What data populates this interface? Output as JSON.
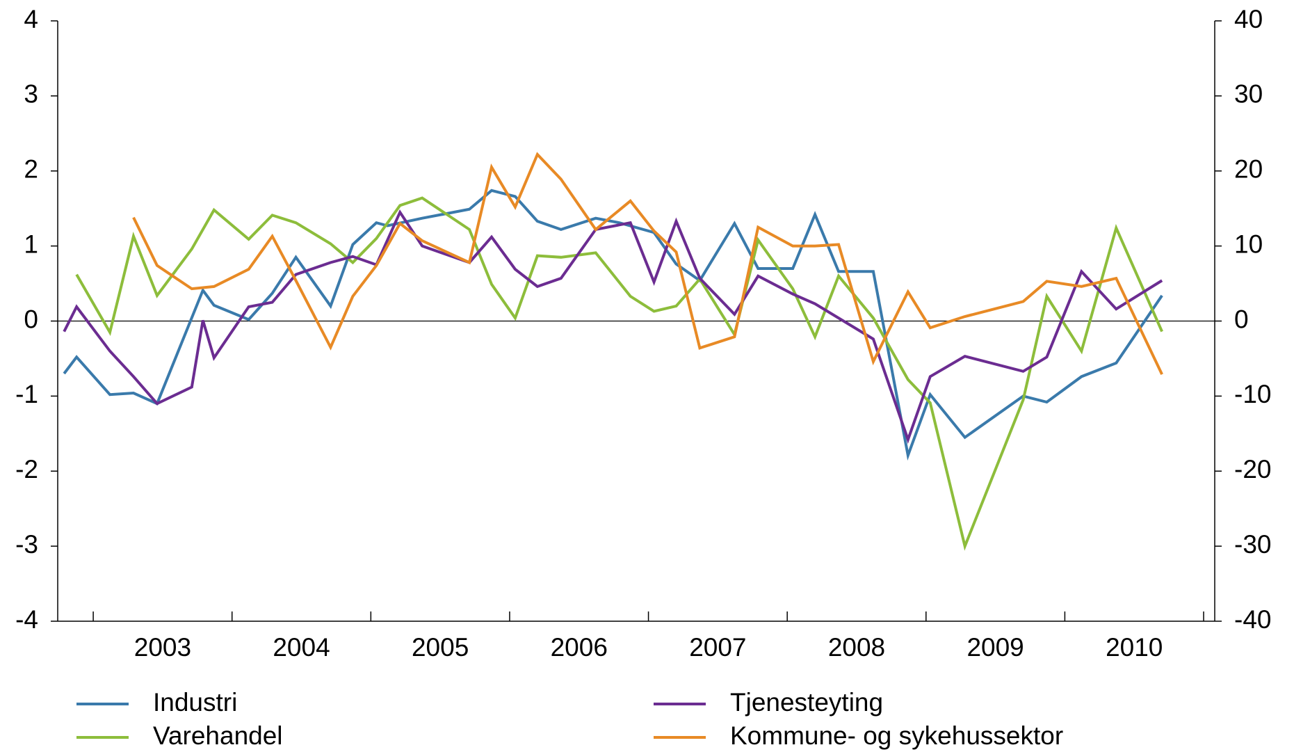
{
  "chart_data": {
    "type": "line",
    "xlim": [
      2002.744,
      2011.08
    ],
    "xticks": [
      2003,
      2004,
      2005,
      2006,
      2007,
      2008,
      2009,
      2010,
      2011
    ],
    "year_labels": [
      "2003",
      "2004",
      "2005",
      "2006",
      "2007",
      "2008",
      "2009",
      "2010"
    ],
    "ylim": [
      -4,
      4
    ],
    "yticks": [
      -4,
      -3,
      -2,
      -1,
      0,
      1,
      2,
      3,
      4
    ],
    "y2lim": [
      -40,
      40
    ],
    "y2ticks": [
      -40,
      -30,
      -20,
      -10,
      0,
      10,
      20,
      30,
      40
    ],
    "zero_line": true,
    "series": [
      {
        "name": "Industri",
        "color": "#3a7aab",
        "x": [
          2002.79,
          2002.88,
          2003.12,
          2003.29,
          2003.46,
          2003.79,
          2003.87,
          2004.12,
          2004.29,
          2004.46,
          2004.71,
          2004.87,
          2005.04,
          2005.12,
          2005.37,
          2005.71,
          2005.87,
          2006.04,
          2006.2,
          2006.37,
          2006.62,
          2006.79,
          2007.04,
          2007.2,
          2007.37,
          2007.62,
          2007.79,
          2008.04,
          2008.2,
          2008.37,
          2008.62,
          2008.87,
          2009.03,
          2009.28,
          2009.7,
          2009.87,
          2010.12,
          2010.37,
          2010.7
        ],
        "values": [
          -0.7,
          -0.48,
          -0.98,
          -0.96,
          -1.1,
          0.41,
          0.21,
          0.02,
          0.37,
          0.85,
          0.2,
          1.02,
          1.31,
          1.27,
          1.37,
          1.49,
          1.74,
          1.66,
          1.33,
          1.22,
          1.37,
          1.31,
          1.18,
          0.76,
          0.54,
          1.3,
          0.7,
          0.7,
          1.42,
          0.66,
          0.66,
          -1.79,
          -0.98,
          -1.55,
          -1.0,
          -1.08,
          -0.74,
          -0.56,
          0.34
        ]
      },
      {
        "name": "Varehandel",
        "color": "#8dbd3b",
        "x": [
          2002.88,
          2003.12,
          2003.29,
          2003.46,
          2003.71,
          2003.87,
          2004.12,
          2004.29,
          2004.46,
          2004.71,
          2004.87,
          2005.04,
          2005.21,
          2005.37,
          2005.71,
          2005.87,
          2006.04,
          2006.2,
          2006.37,
          2006.62,
          2006.87,
          2007.04,
          2007.2,
          2007.37,
          2007.62,
          2007.79,
          2008.04,
          2008.2,
          2008.37,
          2008.62,
          2008.87,
          2009.03,
          2009.28,
          2009.7,
          2009.87,
          2010.12,
          2010.37,
          2010.7
        ],
        "values": [
          0.62,
          -0.15,
          1.13,
          0.34,
          0.96,
          1.48,
          1.09,
          1.41,
          1.31,
          1.03,
          0.78,
          1.1,
          1.54,
          1.64,
          1.22,
          0.49,
          0.04,
          0.87,
          0.85,
          0.91,
          0.33,
          0.13,
          0.2,
          0.56,
          -0.18,
          1.08,
          0.43,
          -0.21,
          0.6,
          0.04,
          -0.78,
          -1.09,
          -3.0,
          -1.05,
          0.33,
          -0.4,
          1.24,
          -0.14
        ]
      },
      {
        "name": "Tjenesteyting",
        "color": "#6b2c91",
        "x": [
          2002.79,
          2002.88,
          2003.12,
          2003.29,
          2003.46,
          2003.71,
          2003.79,
          2003.87,
          2004.12,
          2004.29,
          2004.46,
          2004.71,
          2004.87,
          2005.04,
          2005.21,
          2005.37,
          2005.71,
          2005.87,
          2006.04,
          2006.2,
          2006.37,
          2006.62,
          2006.87,
          2007.04,
          2007.2,
          2007.37,
          2007.62,
          2007.79,
          2008.04,
          2008.2,
          2008.62,
          2008.87,
          2009.03,
          2009.28,
          2009.7,
          2009.87,
          2010.12,
          2010.37,
          2010.7
        ],
        "values": [
          -0.14,
          0.19,
          -0.4,
          -0.74,
          -1.1,
          -0.88,
          0.01,
          -0.49,
          0.19,
          0.25,
          0.62,
          0.78,
          0.86,
          0.75,
          1.45,
          1.0,
          0.78,
          1.12,
          0.69,
          0.46,
          0.57,
          1.22,
          1.31,
          0.52,
          1.33,
          0.57,
          0.09,
          0.6,
          0.36,
          0.23,
          -0.24,
          -1.58,
          -0.74,
          -0.47,
          -0.67,
          -0.48,
          0.66,
          0.16,
          0.54
        ]
      },
      {
        "name": "Kommune- og sykehussektor",
        "color": "#e88a25",
        "axis": "y2",
        "x": [
          2003.29,
          2003.46,
          2003.71,
          2003.87,
          2004.12,
          2004.29,
          2004.46,
          2004.71,
          2004.87,
          2005.04,
          2005.21,
          2005.37,
          2005.71,
          2005.87,
          2006.04,
          2006.2,
          2006.37,
          2006.62,
          2006.87,
          2007.04,
          2007.2,
          2007.37,
          2007.62,
          2007.79,
          2008.04,
          2008.2,
          2008.37,
          2008.62,
          2008.87,
          2009.03,
          2009.28,
          2009.7,
          2009.87,
          2010.12,
          2010.37,
          2010.7
        ],
        "values": [
          13.8,
          7.4,
          4.3,
          4.6,
          6.9,
          11.3,
          5.4,
          -3.5,
          3.3,
          7.4,
          13.0,
          10.7,
          7.8,
          20.5,
          15.2,
          22.2,
          18.9,
          12.2,
          16.0,
          12.0,
          9.2,
          -3.6,
          -2.1,
          12.5,
          10.0,
          10.0,
          10.2,
          -5.4,
          3.9,
          -0.9,
          0.6,
          2.6,
          5.3,
          4.6,
          5.7,
          -7.1
        ]
      }
    ]
  }
}
